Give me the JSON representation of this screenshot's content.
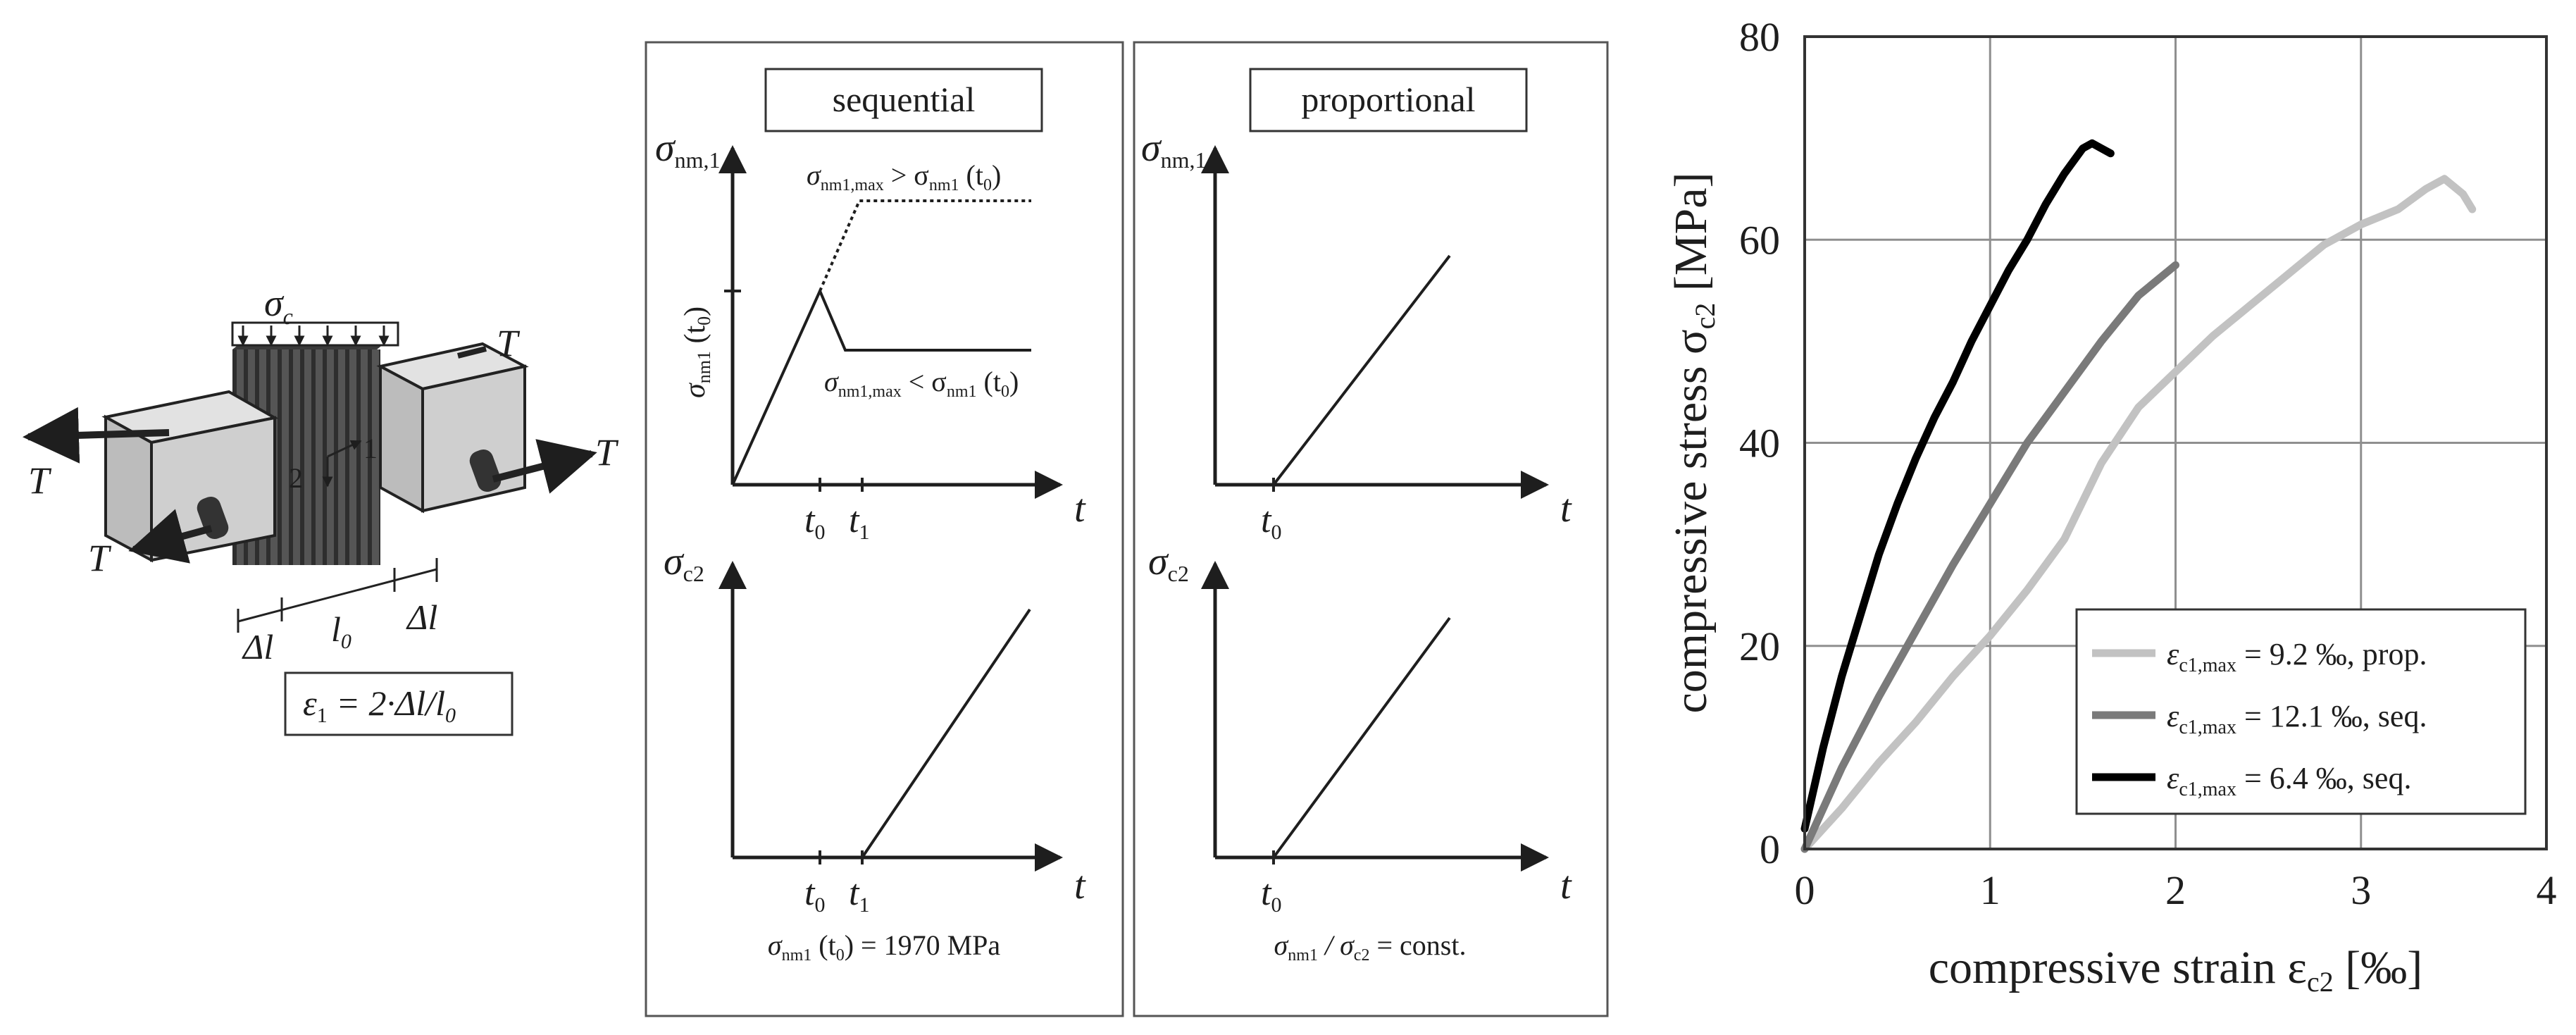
{
  "specimen": {
    "stress_label": "σ",
    "stress_sub": "c",
    "tension_label": "T",
    "axis_1": "1",
    "axis_2": "2",
    "delta_l": "Δl",
    "l0": "l",
    "l0_sub": "0",
    "strain_formula": "ε",
    "strain_formula_sub": "1",
    "strain_formula_rhs": " = 2·Δl/l",
    "strain_formula_rhs_sub": "0"
  },
  "sequential": {
    "title": "sequential",
    "top_ylabel": "σ",
    "top_ylabel_sub": "nm,1",
    "top_tick": "σ",
    "top_tick_sub": "nm1",
    "top_tick_suffix": " (t",
    "top_tick_suffix_sub": "0",
    "top_tick_suffix_end": ")",
    "ann_upper": "σ",
    "ann_upper_sub": "nm1,max",
    "ann_upper_mid": " > σ",
    "ann_upper_mid_sub": "nm1",
    "ann_upper_end": " (t",
    "ann_upper_end_sub": "0",
    "ann_upper_close": ")",
    "ann_lower": "σ",
    "ann_lower_sub": "nm1,max",
    "ann_lower_mid": " < σ",
    "ann_lower_mid_sub": "nm1",
    "ann_lower_end": " (t",
    "ann_lower_end_sub": "0",
    "ann_lower_close": ")",
    "t_label": "t",
    "t0": "t",
    "t0_sub": "0",
    "t1": "t",
    "t1_sub": "1",
    "bottom_ylabel": "σ",
    "bottom_ylabel_sub": "c2",
    "caption": "σ",
    "caption_sub": "nm1",
    "caption_mid": " (t",
    "caption_mid_sub": "0",
    "caption_end": ") = 1970 MPa"
  },
  "proportional": {
    "title": "proportional",
    "top_ylabel": "σ",
    "top_ylabel_sub": "nm,1",
    "t_label": "t",
    "t0": "t",
    "t0_sub": "0",
    "bottom_ylabel": "σ",
    "bottom_ylabel_sub": "c2",
    "caption": "σ",
    "caption_sub": "nm1",
    "caption_mid": " / σ",
    "caption_mid_sub": "c2",
    "caption_end": " = const."
  },
  "chart_data": {
    "type": "line",
    "xlabel": "compressive strain ε",
    "xlabel_sub": "c2",
    "xlabel_unit": " [‰]",
    "ylabel": "compressive stress σ",
    "ylabel_sub": "c2",
    "ylabel_unit": " [MPa]",
    "xlim": [
      0,
      4
    ],
    "ylim": [
      0,
      80
    ],
    "xticks": [
      0,
      1,
      2,
      3,
      4
    ],
    "yticks": [
      0,
      20,
      40,
      60,
      80
    ],
    "grid": true,
    "legend_position": "bottom-right",
    "series": [
      {
        "name": "ε",
        "name_sub": "c1,max",
        "name_rest": " = 9.2 ‰, prop.",
        "color": "#c2c2c2",
        "x": [
          0,
          0.2,
          0.4,
          0.6,
          0.8,
          1.0,
          1.2,
          1.4,
          1.6,
          1.8,
          2.0,
          2.2,
          2.4,
          2.6,
          2.8,
          3.0,
          3.2,
          3.35,
          3.45,
          3.55,
          3.6
        ],
        "y": [
          0,
          4,
          8.5,
          12.5,
          17,
          21,
          25.5,
          30.5,
          38,
          43.5,
          47,
          50.5,
          53.5,
          56.5,
          59.5,
          61.5,
          63,
          65,
          66,
          64.5,
          63
        ]
      },
      {
        "name": "ε",
        "name_sub": "c1,max",
        "name_rest": " = 12.1 ‰, seq.",
        "color": "#7a7a7a",
        "x": [
          0,
          0.2,
          0.4,
          0.6,
          0.8,
          1.0,
          1.2,
          1.4,
          1.6,
          1.8,
          2.0
        ],
        "y": [
          0,
          8,
          15,
          21.5,
          28,
          34,
          40,
          45,
          50,
          54.5,
          57.5
        ]
      },
      {
        "name": "ε",
        "name_sub": "c1,max",
        "name_rest": " = 6.4 ‰, seq.",
        "color": "#000000",
        "x": [
          0,
          0.05,
          0.1,
          0.2,
          0.3,
          0.4,
          0.5,
          0.6,
          0.7,
          0.8,
          0.9,
          1.0,
          1.1,
          1.2,
          1.3,
          1.4,
          1.5,
          1.55,
          1.6,
          1.65
        ],
        "y": [
          2,
          6,
          10,
          17,
          23,
          29,
          34,
          38.5,
          42.5,
          46,
          50,
          53.5,
          57,
          60,
          63.5,
          66.5,
          69,
          69.5,
          69,
          68.5
        ]
      }
    ]
  }
}
